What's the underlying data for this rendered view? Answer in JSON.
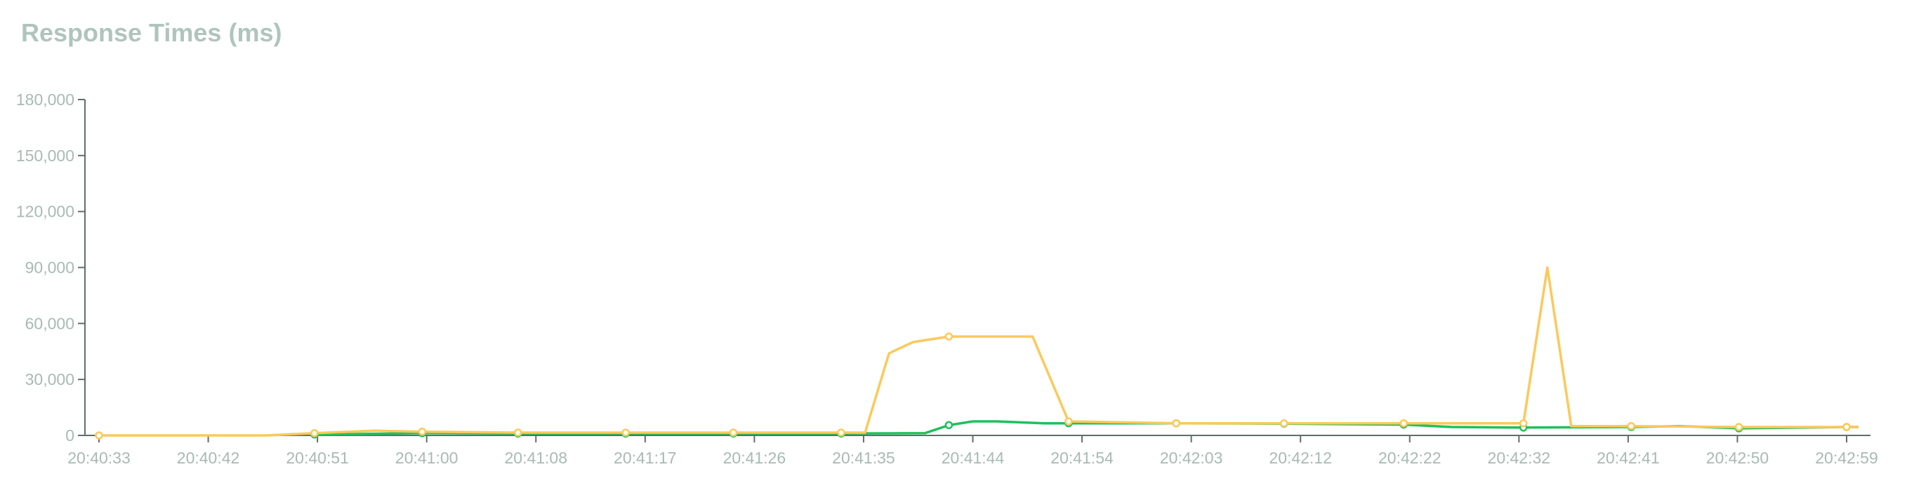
{
  "title": "Response Times (ms)",
  "chart_data": {
    "type": "line",
    "title": "Response Times (ms)",
    "xlabel": "",
    "ylabel": "",
    "ylim": [
      0,
      180000
    ],
    "yticks": [
      "0",
      "30,000",
      "60,000",
      "90,000",
      "120,000",
      "150,000",
      "180,000"
    ],
    "xticks": [
      "20:40:33",
      "20:40:42",
      "20:40:51",
      "20:41:00",
      "20:41:08",
      "20:41:17",
      "20:41:26",
      "20:41:35",
      "20:41:44",
      "20:41:54",
      "20:42:03",
      "20:42:12",
      "20:42:22",
      "20:42:32",
      "20:42:41",
      "20:42:50",
      "20:42:59"
    ],
    "grid": false,
    "legend": "none",
    "series": [
      {
        "color": "#1ec15c",
        "points": [
          {
            "t": "20:40:51",
            "y": 500
          },
          {
            "t": "20:41:00",
            "y": 1200
          },
          {
            "t": "20:41:08",
            "y": 1000
          },
          {
            "t": "20:41:17",
            "y": 1000
          },
          {
            "t": "20:41:26",
            "y": 1000
          },
          {
            "t": "20:41:35",
            "y": 1000
          },
          {
            "t": "20:41:42",
            "y": 1200
          },
          {
            "t": "20:41:44",
            "y": 5500
          },
          {
            "t": "20:41:46",
            "y": 7500
          },
          {
            "t": "20:41:48",
            "y": 7500
          },
          {
            "t": "20:41:52",
            "y": 6500
          },
          {
            "t": "20:41:54",
            "y": 6500
          },
          {
            "t": "20:42:03",
            "y": 6500
          },
          {
            "t": "20:42:12",
            "y": 6300
          },
          {
            "t": "20:42:22",
            "y": 5800
          },
          {
            "t": "20:42:26",
            "y": 4500
          },
          {
            "t": "20:42:32",
            "y": 4200
          },
          {
            "t": "20:42:41",
            "y": 4500
          },
          {
            "t": "20:42:45",
            "y": 5000
          },
          {
            "t": "20:42:50",
            "y": 3800
          },
          {
            "t": "20:42:59",
            "y": 4500
          },
          {
            "t": "20:43:00",
            "y": 4500
          }
        ]
      },
      {
        "color": "#fbc95b",
        "points": [
          {
            "t": "20:40:33",
            "y": 0
          },
          {
            "t": "20:40:47",
            "y": 0
          },
          {
            "t": "20:40:51",
            "y": 1200
          },
          {
            "t": "20:40:56",
            "y": 2500
          },
          {
            "t": "20:41:00",
            "y": 2000
          },
          {
            "t": "20:41:08",
            "y": 1500
          },
          {
            "t": "20:41:17",
            "y": 1500
          },
          {
            "t": "20:41:26",
            "y": 1500
          },
          {
            "t": "20:41:35",
            "y": 1500
          },
          {
            "t": "20:41:37",
            "y": 1500
          },
          {
            "t": "20:41:39",
            "y": 44000
          },
          {
            "t": "20:41:41",
            "y": 50000
          },
          {
            "t": "20:41:44",
            "y": 53000
          },
          {
            "t": "20:41:51",
            "y": 53000
          },
          {
            "t": "20:41:54",
            "y": 7500
          },
          {
            "t": "20:42:03",
            "y": 6500
          },
          {
            "t": "20:42:12",
            "y": 6500
          },
          {
            "t": "20:42:22",
            "y": 6500
          },
          {
            "t": "20:42:32",
            "y": 6500
          },
          {
            "t": "20:42:34",
            "y": 90000
          },
          {
            "t": "20:42:36",
            "y": 5000
          },
          {
            "t": "20:42:41",
            "y": 5000
          },
          {
            "t": "20:42:50",
            "y": 4500
          },
          {
            "t": "20:42:59",
            "y": 4500
          },
          {
            "t": "20:43:00",
            "y": 4500
          }
        ]
      }
    ]
  }
}
